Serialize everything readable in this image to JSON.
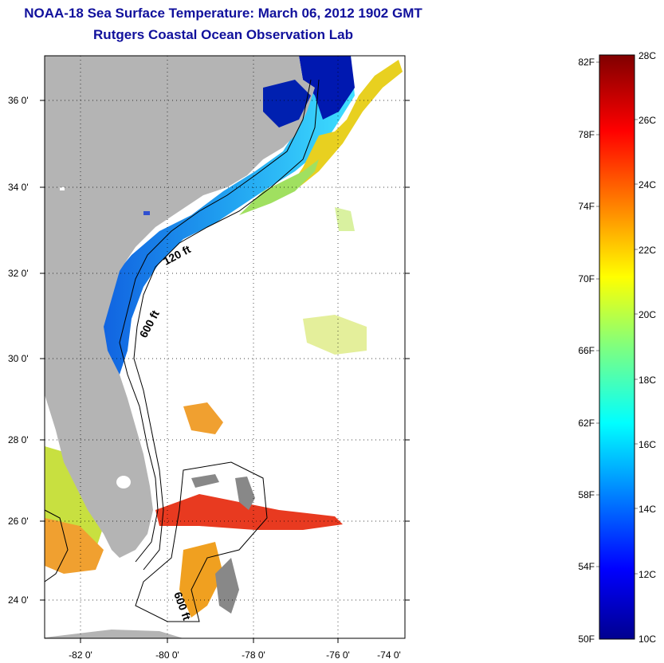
{
  "header": {
    "title": "NOAA-18 Sea Surface Temperature:  March 06, 2012 1902 GMT",
    "subtitle": "Rutgers Coastal Ocean Observation Lab"
  },
  "map": {
    "lat_ticks": [
      "36 0'",
      "34 0'",
      "32 0'",
      "30 0'",
      "28 0'",
      "26 0'",
      "24 0'"
    ],
    "lon_ticks": [
      "-82 0'",
      "-80 0'",
      "-78 0'",
      "-76 0'",
      "-74 0'"
    ],
    "contour_labels": {
      "shallow": "120 ft",
      "deep_north": "600 ft",
      "deep_south": "600 ft"
    },
    "land_color": "#b4b4b4",
    "cloud_color": "#ffffff"
  },
  "colorbar": {
    "celsius_labels": [
      "28C",
      "26C",
      "24C",
      "22C",
      "20C",
      "18C",
      "16C",
      "14C",
      "12C",
      "10C"
    ],
    "fahrenheit_labels": [
      "82F",
      "78F",
      "74F",
      "70F",
      "66F",
      "62F",
      "58F",
      "54F",
      "50F"
    ],
    "range_c": [
      10,
      28
    ],
    "range_f": [
      50,
      82
    ]
  }
}
